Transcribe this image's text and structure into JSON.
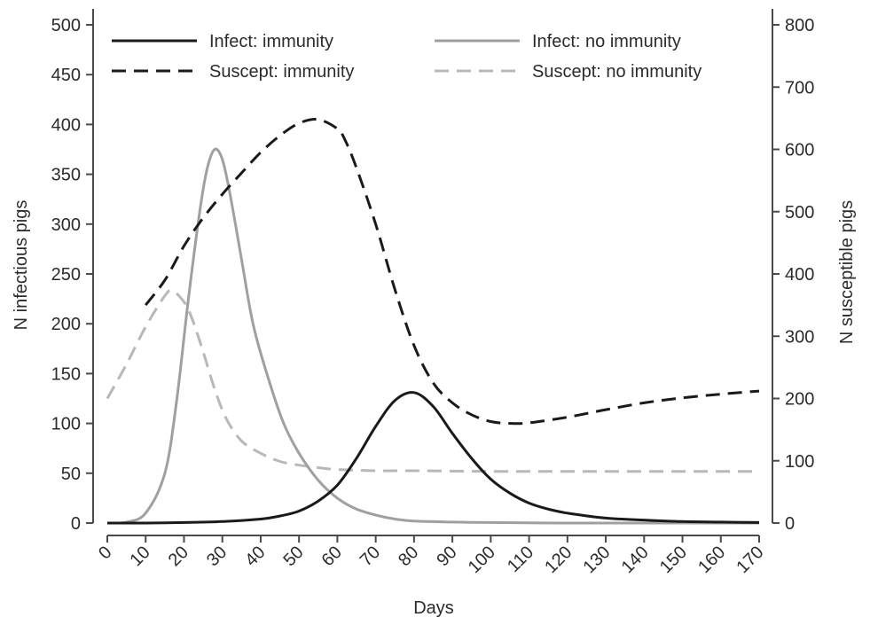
{
  "chart_data": {
    "type": "line",
    "xlabel": "Days",
    "ylabel_left": "N infectious pigs",
    "ylabel_right": "N susceptible pigs",
    "xlim": [
      0,
      170
    ],
    "ylim_left": [
      0,
      500
    ],
    "ylim_right": [
      0,
      800
    ],
    "x_ticks": [
      0,
      10,
      20,
      30,
      40,
      50,
      60,
      70,
      80,
      90,
      100,
      110,
      120,
      130,
      140,
      150,
      160,
      170
    ],
    "y_left_ticks": [
      0,
      50,
      100,
      150,
      200,
      250,
      300,
      350,
      400,
      450,
      500
    ],
    "y_right_ticks": [
      0,
      100,
      200,
      300,
      400,
      500,
      600,
      700,
      800
    ],
    "grid": false,
    "legend_position": "top",
    "series": [
      {
        "name": "Infect: immunity",
        "axis": "left",
        "color": "#1a1a1a",
        "dash": "solid",
        "points": [
          [
            0,
            0
          ],
          [
            10,
            0
          ],
          [
            20,
            0.5
          ],
          [
            30,
            1.5
          ],
          [
            40,
            4
          ],
          [
            45,
            7
          ],
          [
            50,
            12
          ],
          [
            55,
            22
          ],
          [
            60,
            38
          ],
          [
            65,
            65
          ],
          [
            70,
            97
          ],
          [
            75,
            123
          ],
          [
            80,
            131
          ],
          [
            85,
            117
          ],
          [
            90,
            90
          ],
          [
            95,
            65
          ],
          [
            100,
            44
          ],
          [
            105,
            30
          ],
          [
            110,
            20
          ],
          [
            115,
            14
          ],
          [
            120,
            10
          ],
          [
            130,
            5
          ],
          [
            140,
            3
          ],
          [
            150,
            1.5
          ],
          [
            160,
            1
          ],
          [
            170,
            0.5
          ]
        ]
      },
      {
        "name": "Infect: no immunity",
        "axis": "left",
        "color": "#a0a0a0",
        "dash": "solid",
        "points": [
          [
            0,
            0
          ],
          [
            5,
            1
          ],
          [
            10,
            10
          ],
          [
            15,
            50
          ],
          [
            18,
            120
          ],
          [
            21,
            220
          ],
          [
            24,
            310
          ],
          [
            26,
            355
          ],
          [
            28,
            375
          ],
          [
            30,
            365
          ],
          [
            32,
            330
          ],
          [
            35,
            265
          ],
          [
            38,
            200
          ],
          [
            42,
            145
          ],
          [
            46,
            100
          ],
          [
            50,
            70
          ],
          [
            55,
            43
          ],
          [
            60,
            25
          ],
          [
            65,
            14
          ],
          [
            70,
            8
          ],
          [
            75,
            4
          ],
          [
            80,
            2
          ],
          [
            90,
            1
          ],
          [
            100,
            0.5
          ],
          [
            120,
            0
          ],
          [
            140,
            0
          ],
          [
            170,
            0
          ]
        ]
      },
      {
        "name": "Suscept: immunity",
        "axis": "right",
        "color": "#1a1a1a",
        "dash": "dashed",
        "points": [
          [
            10,
            350
          ],
          [
            15,
            390
          ],
          [
            20,
            445
          ],
          [
            25,
            490
          ],
          [
            30,
            528
          ],
          [
            35,
            562
          ],
          [
            40,
            595
          ],
          [
            45,
            622
          ],
          [
            50,
            642
          ],
          [
            55,
            648
          ],
          [
            60,
            633
          ],
          [
            62,
            615
          ],
          [
            65,
            570
          ],
          [
            70,
            480
          ],
          [
            75,
            375
          ],
          [
            80,
            285
          ],
          [
            85,
            225
          ],
          [
            90,
            193
          ],
          [
            95,
            174
          ],
          [
            100,
            163
          ],
          [
            105,
            160
          ],
          [
            110,
            161
          ],
          [
            120,
            170
          ],
          [
            130,
            182
          ],
          [
            140,
            193
          ],
          [
            150,
            201
          ],
          [
            160,
            207
          ],
          [
            170,
            212
          ]
        ]
      },
      {
        "name": "Suscept: no immunity",
        "axis": "right",
        "color": "#b8b8b8",
        "dash": "dashed",
        "points": [
          [
            0,
            200
          ],
          [
            5,
            255
          ],
          [
            10,
            315
          ],
          [
            15,
            365
          ],
          [
            17,
            373
          ],
          [
            20,
            355
          ],
          [
            22,
            330
          ],
          [
            25,
            275
          ],
          [
            28,
            215
          ],
          [
            31,
            168
          ],
          [
            35,
            132
          ],
          [
            40,
            112
          ],
          [
            45,
            99
          ],
          [
            50,
            93
          ],
          [
            55,
            89
          ],
          [
            60,
            86
          ],
          [
            70,
            84
          ],
          [
            80,
            84
          ],
          [
            100,
            83
          ],
          [
            120,
            83
          ],
          [
            150,
            83
          ],
          [
            170,
            83
          ]
        ]
      }
    ]
  }
}
